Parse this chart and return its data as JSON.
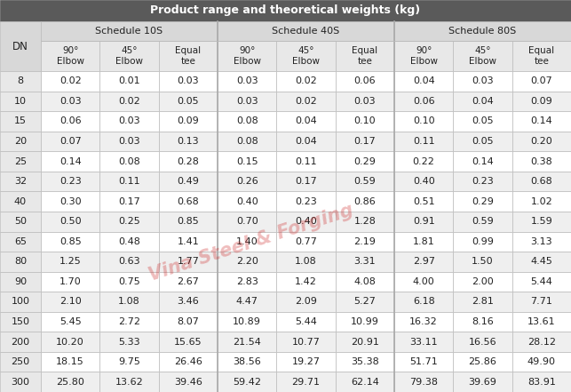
{
  "title": "Product range and theoretical weights (kg)",
  "col_groups": [
    {
      "label": "Schedule 10S"
    },
    {
      "label": "Schedule 40S"
    },
    {
      "label": "Schedule 80S"
    }
  ],
  "sub_headers": [
    "90°\nElbow",
    "45°\nElbow",
    "Equal\ntee",
    "90°\nElbow",
    "45°\nElbow",
    "Equal\ntee",
    "90°\nElbow",
    "45°\nElbow",
    "Equal\ntee"
  ],
  "dn_col": "DN",
  "rows": [
    [
      8,
      0.02,
      0.01,
      0.03,
      0.03,
      0.02,
      0.06,
      0.04,
      0.03,
      0.07
    ],
    [
      10,
      0.03,
      0.02,
      0.05,
      0.03,
      0.02,
      0.03,
      0.06,
      0.04,
      0.09
    ],
    [
      15,
      0.06,
      0.03,
      0.09,
      0.08,
      0.04,
      0.1,
      0.1,
      0.05,
      0.14
    ],
    [
      20,
      0.07,
      0.03,
      0.13,
      0.08,
      0.04,
      0.17,
      0.11,
      0.05,
      0.2
    ],
    [
      25,
      0.14,
      0.08,
      0.28,
      0.15,
      0.11,
      0.29,
      0.22,
      0.14,
      0.38
    ],
    [
      32,
      0.23,
      0.11,
      0.49,
      0.26,
      0.17,
      0.59,
      0.4,
      0.23,
      0.68
    ],
    [
      40,
      0.3,
      0.17,
      0.68,
      0.4,
      0.23,
      0.86,
      0.51,
      0.29,
      1.02
    ],
    [
      50,
      0.5,
      0.25,
      0.85,
      0.7,
      0.4,
      1.28,
      0.91,
      0.59,
      1.59
    ],
    [
      65,
      0.85,
      0.48,
      1.41,
      1.4,
      0.77,
      2.19,
      1.81,
      0.99,
      3.13
    ],
    [
      80,
      1.25,
      0.63,
      1.77,
      2.2,
      1.08,
      3.31,
      2.97,
      1.5,
      4.45
    ],
    [
      90,
      1.7,
      0.75,
      2.67,
      2.83,
      1.42,
      4.08,
      4.0,
      2.0,
      5.44
    ],
    [
      100,
      2.1,
      1.08,
      3.46,
      4.47,
      2.09,
      5.27,
      6.18,
      2.81,
      7.71
    ],
    [
      150,
      5.45,
      2.72,
      8.07,
      10.89,
      5.44,
      10.99,
      16.32,
      8.16,
      13.61
    ],
    [
      200,
      10.2,
      5.33,
      15.65,
      21.54,
      10.77,
      20.91,
      33.11,
      16.56,
      28.12
    ],
    [
      250,
      18.15,
      9.75,
      26.46,
      38.56,
      19.27,
      35.38,
      51.71,
      25.86,
      49.9
    ],
    [
      300,
      25.8,
      13.62,
      39.46,
      59.42,
      29.71,
      62.14,
      79.38,
      39.69,
      83.91
    ]
  ],
  "title_bg": "#5a5a5a",
  "title_color": "#ffffff",
  "group_header_bg": "#d8d8d8",
  "group_header_color": "#222222",
  "subheader_bg": "#e8e8e8",
  "subheader_color": "#222222",
  "dn_header_bg": "#d8d8d8",
  "dn_header_color": "#222222",
  "row_odd_bg": "#ffffff",
  "row_even_bg": "#efefef",
  "row_color": "#222222",
  "border_color": "#bbbbbb",
  "sep_color": "#aaaaaa",
  "watermark_color": "#cc2222",
  "watermark_text": "Vina Steel & Forging",
  "dn_col_bg": "#e8e8e8"
}
